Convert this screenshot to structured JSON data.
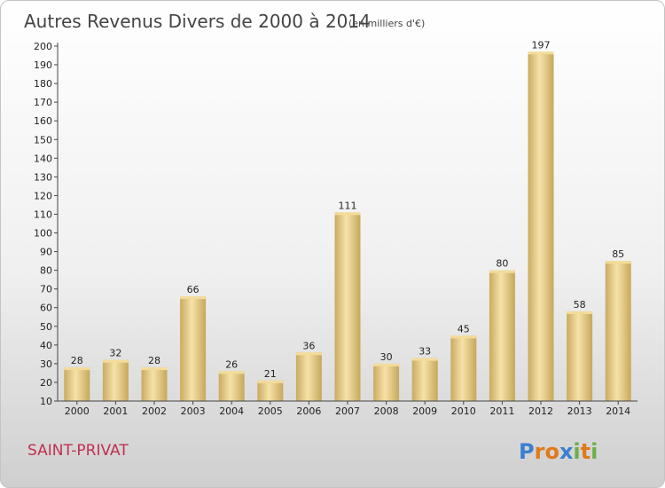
{
  "chart_data": {
    "type": "bar",
    "title": "Autres Revenus Divers de 2000 à 2014",
    "subtitle": "(en milliers d'€)",
    "categories": [
      "2000",
      "2001",
      "2002",
      "2003",
      "2004",
      "2005",
      "2006",
      "2007",
      "2008",
      "2009",
      "2010",
      "2011",
      "2012",
      "2013",
      "2014"
    ],
    "values": [
      28,
      32,
      28,
      66,
      26,
      21,
      36,
      111,
      30,
      33,
      45,
      80,
      197,
      58,
      85
    ],
    "xlabel": "",
    "ylabel": "",
    "ylim": [
      10,
      200
    ],
    "yticks": [
      10,
      20,
      30,
      40,
      50,
      60,
      70,
      80,
      90,
      100,
      110,
      120,
      130,
      140,
      150,
      160,
      170,
      180,
      190,
      200
    ],
    "grid": false,
    "bar_color": "#dcc07a"
  },
  "place": "SAINT-PRIVAT",
  "logo": {
    "letters": [
      "P",
      "r",
      "o",
      "x",
      "i",
      "t",
      "i"
    ],
    "colors": [
      "#3a7fd0",
      "#e07a1a",
      "#e07a1a",
      "#3a7fd0",
      "#6ab04c",
      "#e07a1a",
      "#6ab04c"
    ]
  }
}
